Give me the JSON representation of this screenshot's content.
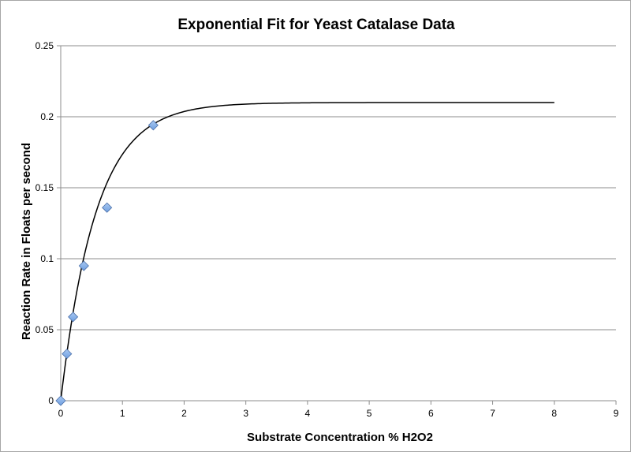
{
  "chart_data": {
    "type": "scatter",
    "title": "Exponential Fit for Yeast Catalase Data",
    "xlabel": "Substrate Concentration % H2O2",
    "ylabel": "Reaction Rate in Floats per second",
    "xlim": [
      0,
      9
    ],
    "ylim": [
      0,
      0.25
    ],
    "x_ticks": [
      "0",
      "1",
      "2",
      "3",
      "4",
      "5",
      "6",
      "7",
      "8",
      "9"
    ],
    "y_ticks": [
      "0",
      "0.05",
      "0.1",
      "0.15",
      "0.2",
      "0.25"
    ],
    "grid": "horizontal",
    "legend": "none",
    "series": [
      {
        "type": "scatter",
        "marker": "diamond",
        "color": "#6f9fe0",
        "x": [
          0,
          0.1,
          0.2,
          0.375,
          0.75,
          1.5
        ],
        "y": [
          0,
          0.033,
          0.059,
          0.095,
          0.136,
          0.194
        ]
      },
      {
        "type": "line",
        "color": "#000000",
        "function": "y = 0.21 * (1 - exp(-1.75 * x))",
        "x_range": [
          0,
          8
        ]
      }
    ]
  }
}
